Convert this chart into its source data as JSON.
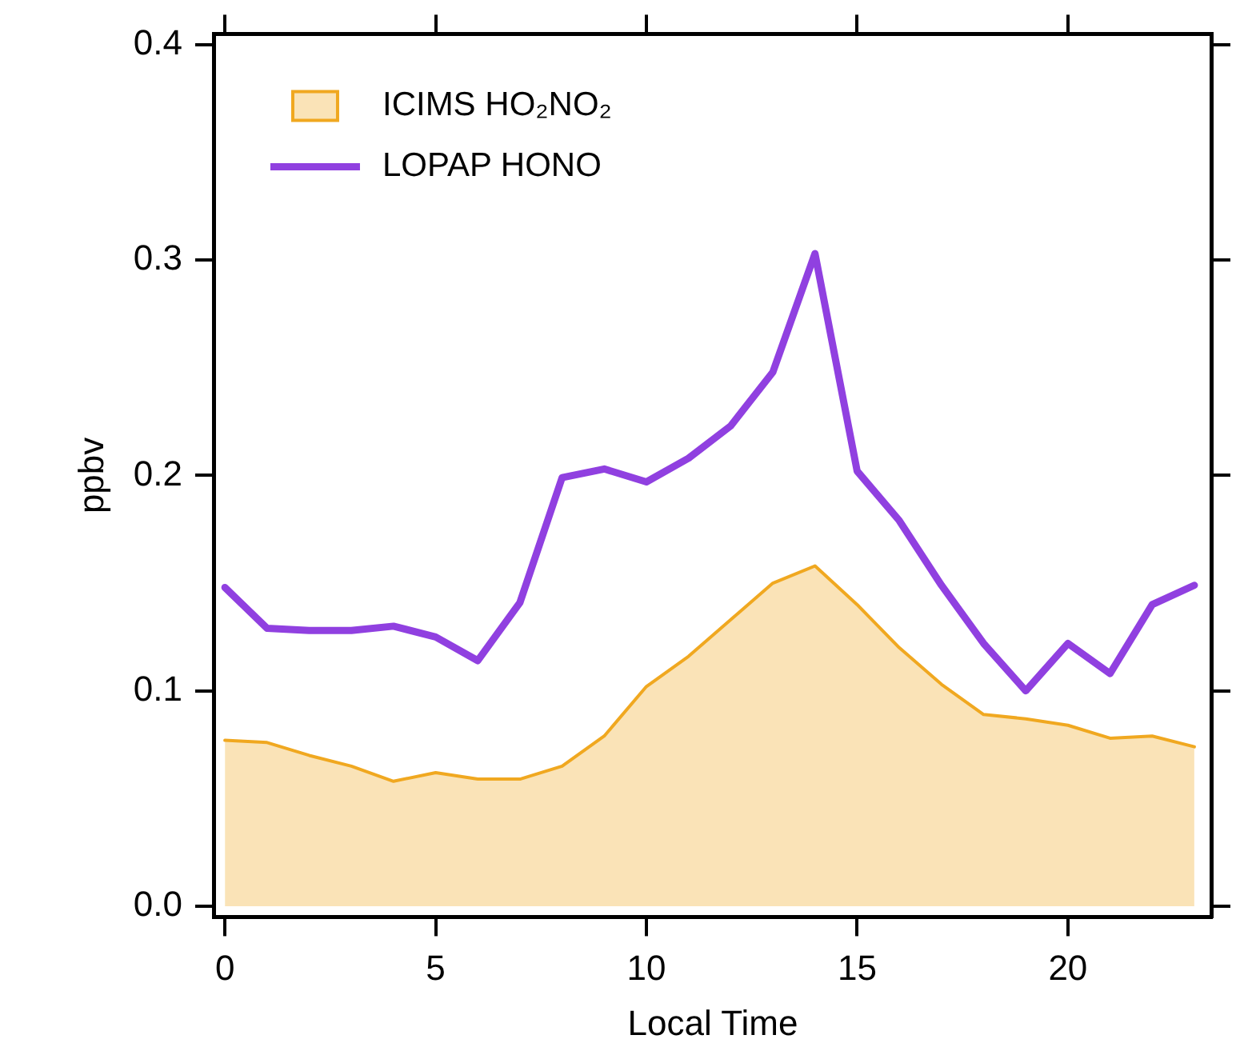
{
  "chart_data": {
    "type": "line",
    "xlabel": "Local Time",
    "ylabel": "ppbv",
    "x": [
      0,
      1,
      2,
      3,
      4,
      5,
      6,
      7,
      8,
      9,
      10,
      11,
      12,
      13,
      14,
      15,
      16,
      17,
      18,
      19,
      20,
      21,
      22,
      23
    ],
    "xlim": [
      -0.25,
      23.4
    ],
    "xticks": [
      0,
      5,
      10,
      15,
      20
    ],
    "ylim": [
      -0.005,
      0.405
    ],
    "yticks": [
      {
        "value": 0,
        "label": "0.0"
      },
      {
        "value": 0.1,
        "label": "0.1"
      },
      {
        "value": 0.2,
        "label": "0.2"
      },
      {
        "value": 0.3,
        "label": "0.3"
      },
      {
        "value": 0.4,
        "label": "0.4"
      }
    ],
    "grid": false,
    "legend": "top left",
    "marker": "none",
    "series": [
      {
        "name": "ICIMS HO₂NO₂",
        "type": "area",
        "color": "#f0a820",
        "values": [
          0.077,
          0.076,
          0.07,
          0.065,
          0.058,
          0.062,
          0.059,
          0.059,
          0.065,
          0.079,
          0.102,
          0.116,
          0.133,
          0.15,
          0.158,
          0.14,
          0.12,
          0.103,
          0.089,
          0.087,
          0.084,
          0.078,
          0.079,
          0.074
        ]
      },
      {
        "name": "LOPAP HONO",
        "type": "line",
        "color": "#9040e0",
        "values": [
          0.148,
          0.129,
          0.128,
          0.128,
          0.13,
          0.125,
          0.114,
          0.141,
          0.199,
          0.203,
          0.197,
          0.208,
          0.223,
          0.248,
          0.303,
          0.202,
          0.179,
          0.149,
          0.122,
          0.1,
          0.122,
          0.108,
          0.14,
          0.149
        ]
      }
    ]
  }
}
